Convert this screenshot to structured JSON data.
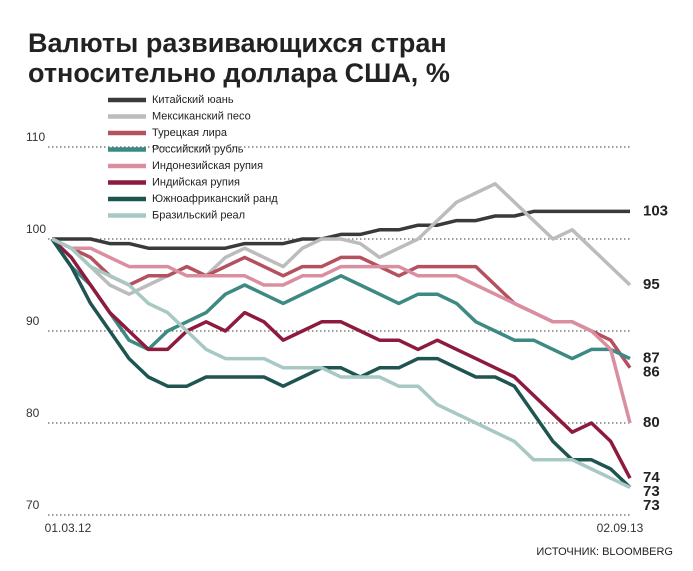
{
  "chart_data": {
    "type": "line",
    "title": "Валюты развивающихся стран",
    "subtitle": "относительно доллара США, %",
    "source": "ИСТОЧНИК: BLOOMBERG",
    "categories": [
      "01.03.12",
      null,
      null,
      null,
      null,
      null,
      null,
      null,
      null,
      null,
      null,
      null,
      null,
      null,
      null,
      null,
      null,
      null,
      null,
      null,
      null,
      null,
      null,
      null,
      null,
      null,
      null,
      null,
      null,
      null,
      "02.09.13"
    ],
    "ylim": [
      70,
      115
    ],
    "yticks": [
      70,
      80,
      90,
      100,
      110
    ],
    "grid": true,
    "series": [
      {
        "name": "Китайский юань",
        "color": "#3a3a3a",
        "values": [
          100,
          100,
          100,
          99.5,
          99.5,
          99,
          99,
          99,
          99,
          99,
          99.5,
          99.5,
          99.5,
          100,
          100,
          100.5,
          100.5,
          101,
          101,
          101.5,
          101.5,
          102,
          102,
          102.5,
          102.5,
          103,
          103,
          103,
          103,
          103,
          103
        ]
      },
      {
        "name": "Мексиканский песо",
        "color": "#bcbcbc",
        "values": [
          100,
          99,
          97,
          95,
          94,
          95,
          96,
          97,
          96,
          98,
          99,
          98,
          97,
          99,
          100,
          100,
          99.5,
          98,
          99,
          100,
          102,
          104,
          105,
          106,
          104,
          102,
          100,
          101,
          99,
          97,
          95
        ]
      },
      {
        "name": "Турецкая лира",
        "color": "#b5505f",
        "values": [
          100,
          99,
          98,
          96,
          95,
          96,
          96,
          97,
          96,
          97,
          98,
          97,
          96,
          97,
          97,
          98,
          98,
          97,
          96,
          97,
          97,
          97,
          97,
          95,
          93,
          92,
          91,
          91,
          90,
          89,
          86
        ]
      },
      {
        "name": "Российский рубль",
        "color": "#3d8a84",
        "values": [
          100,
          97,
          95,
          92,
          89,
          88,
          90,
          91,
          92,
          94,
          95,
          94,
          93,
          94,
          95,
          96,
          95,
          94,
          93,
          94,
          94,
          93,
          91,
          90,
          89,
          89,
          88,
          87,
          88,
          88,
          87
        ]
      },
      {
        "name": "Индонезийская рупия",
        "color": "#d98fa0",
        "values": [
          100,
          99,
          99,
          98,
          97,
          97,
          97,
          96,
          96,
          96,
          96,
          95,
          95,
          96,
          96,
          97,
          97,
          97,
          97,
          96,
          96,
          96,
          95,
          94,
          93,
          92,
          91,
          91,
          90,
          88,
          80
        ]
      },
      {
        "name": "Индийская рупия",
        "color": "#8e1b3e",
        "values": [
          100,
          98,
          95,
          92,
          90,
          88,
          88,
          90,
          91,
          90,
          92,
          91,
          89,
          90,
          91,
          91,
          90,
          89,
          89,
          88,
          89,
          88,
          87,
          86,
          85,
          83,
          81,
          79,
          80,
          78,
          74
        ]
      },
      {
        "name": "Южноафриканский ранд",
        "color": "#1f5550",
        "values": [
          100,
          97,
          93,
          90,
          87,
          85,
          84,
          84,
          85,
          85,
          85,
          85,
          84,
          85,
          86,
          86,
          85,
          86,
          86,
          87,
          87,
          86,
          85,
          85,
          84,
          81,
          78,
          76,
          76,
          75,
          73
        ]
      },
      {
        "name": "Бразильский реал",
        "color": "#a8c8c4",
        "values": [
          100,
          99,
          97,
          96,
          95,
          93,
          92,
          90,
          88,
          87,
          87,
          87,
          86,
          86,
          86,
          85,
          85,
          85,
          84,
          84,
          82,
          81,
          80,
          79,
          78,
          76,
          76,
          76,
          75,
          74,
          73
        ]
      }
    ]
  }
}
